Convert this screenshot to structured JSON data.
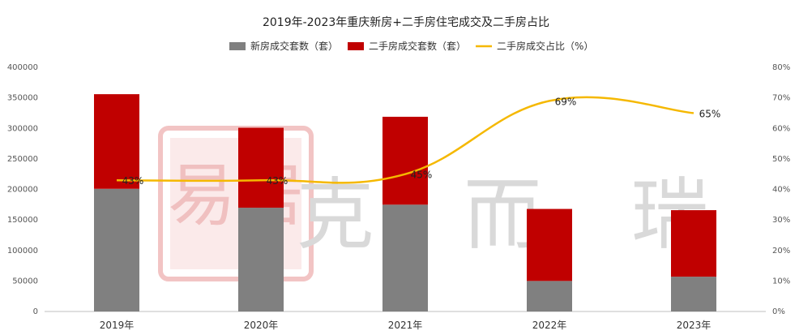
{
  "chart_data": {
    "type": "bar",
    "title": "2019年-2023年重庆新房+二手房住宅成交及二手房占比",
    "categories": [
      "2019年",
      "2020年",
      "2021年",
      "2022年",
      "2023年"
    ],
    "stacked": true,
    "series": [
      {
        "name": "新房成交套数（套）",
        "type": "bar",
        "axis": "left",
        "color": "#808080",
        "values": [
          201000,
          170000,
          175000,
          50000,
          57000
        ]
      },
      {
        "name": "二手房成交套数（套）",
        "type": "bar",
        "axis": "left",
        "color": "#c00000",
        "values": [
          155000,
          131000,
          144000,
          118000,
          109000
        ]
      },
      {
        "name": "二手房成交占比（%）",
        "type": "line",
        "axis": "right",
        "smooth": true,
        "color": "#f5b800",
        "values": [
          43,
          43,
          45,
          69,
          65
        ],
        "labels": [
          "43%",
          "43%",
          "45%",
          "69%",
          "65%"
        ]
      }
    ],
    "y_left": {
      "min": 0,
      "max": 400000,
      "ticks": [
        "0",
        "50000",
        "100000",
        "150000",
        "200000",
        "250000",
        "300000",
        "350000",
        "400000"
      ]
    },
    "y_right": {
      "min": 0,
      "max": 80,
      "ticks": [
        "0%",
        "10%",
        "20%",
        "30%",
        "40%",
        "50%",
        "60%",
        "70%",
        "80%"
      ]
    },
    "grid": false,
    "legend": "top-center"
  },
  "watermark": {
    "text": "克 而 瑞",
    "seal": "易居"
  }
}
